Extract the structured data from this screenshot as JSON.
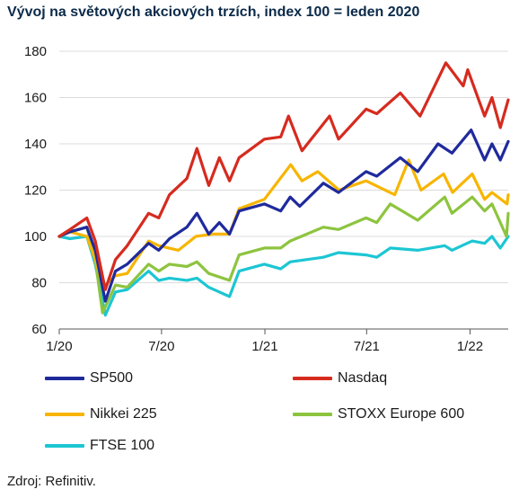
{
  "chart_data": {
    "type": "line",
    "title": "Vývoj na světových akciových trzích, index 100 = leden 2020",
    "xlabel": "",
    "ylabel": "",
    "ylim": [
      60,
      180
    ],
    "yticks": [
      60,
      80,
      100,
      120,
      140,
      160,
      180
    ],
    "xlim": [
      "2020-01-01",
      "2022-03-10"
    ],
    "xticks": [
      {
        "date": "2020-01-01",
        "label": "1/20"
      },
      {
        "date": "2020-07-01",
        "label": "7/20"
      },
      {
        "date": "2021-01-01",
        "label": "1/21"
      },
      {
        "date": "2021-07-01",
        "label": "7/21"
      },
      {
        "date": "2022-01-01",
        "label": "1/22"
      }
    ],
    "grid": "horizontal",
    "legend_position": "bottom",
    "series": [
      {
        "name": "SP500",
        "color": "#1f2a9c",
        "points": [
          [
            "2020-01-01",
            100
          ],
          [
            "2020-01-20",
            102
          ],
          [
            "2020-02-19",
            104
          ],
          [
            "2020-03-05",
            94
          ],
          [
            "2020-03-23",
            72
          ],
          [
            "2020-04-10",
            85
          ],
          [
            "2020-05-01",
            88
          ],
          [
            "2020-06-08",
            97
          ],
          [
            "2020-06-26",
            94
          ],
          [
            "2020-07-15",
            99
          ],
          [
            "2020-08-15",
            104
          ],
          [
            "2020-09-02",
            110
          ],
          [
            "2020-09-23",
            101
          ],
          [
            "2020-10-12",
            106
          ],
          [
            "2020-10-30",
            101
          ],
          [
            "2020-11-16",
            111
          ],
          [
            "2020-12-31",
            114
          ],
          [
            "2021-01-29",
            111
          ],
          [
            "2021-02-15",
            117
          ],
          [
            "2021-03-04",
            113
          ],
          [
            "2021-04-15",
            123
          ],
          [
            "2021-05-12",
            119
          ],
          [
            "2021-06-30",
            128
          ],
          [
            "2021-07-19",
            126
          ],
          [
            "2021-08-30",
            134
          ],
          [
            "2021-09-30",
            128
          ],
          [
            "2021-11-05",
            140
          ],
          [
            "2021-11-30",
            136
          ],
          [
            "2022-01-03",
            146
          ],
          [
            "2022-01-27",
            133
          ],
          [
            "2022-02-09",
            140
          ],
          [
            "2022-02-24",
            133
          ],
          [
            "2022-03-10",
            141
          ]
        ]
      },
      {
        "name": "Nasdaq",
        "color": "#d62b1f",
        "points": [
          [
            "2020-01-01",
            100
          ],
          [
            "2020-01-20",
            103
          ],
          [
            "2020-02-19",
            108
          ],
          [
            "2020-03-05",
            98
          ],
          [
            "2020-03-23",
            77
          ],
          [
            "2020-04-10",
            90
          ],
          [
            "2020-05-01",
            96
          ],
          [
            "2020-06-08",
            110
          ],
          [
            "2020-06-26",
            108
          ],
          [
            "2020-07-15",
            118
          ],
          [
            "2020-08-15",
            125
          ],
          [
            "2020-09-02",
            138
          ],
          [
            "2020-09-23",
            122
          ],
          [
            "2020-10-12",
            134
          ],
          [
            "2020-10-30",
            124
          ],
          [
            "2020-11-16",
            134
          ],
          [
            "2020-12-31",
            142
          ],
          [
            "2021-01-29",
            143
          ],
          [
            "2021-02-12",
            152
          ],
          [
            "2021-03-08",
            137
          ],
          [
            "2021-04-26",
            152
          ],
          [
            "2021-05-12",
            142
          ],
          [
            "2021-06-30",
            155
          ],
          [
            "2021-07-19",
            153
          ],
          [
            "2021-08-30",
            162
          ],
          [
            "2021-10-04",
            152
          ],
          [
            "2021-11-19",
            175
          ],
          [
            "2021-12-20",
            165
          ],
          [
            "2021-12-28",
            172
          ],
          [
            "2022-01-27",
            152
          ],
          [
            "2022-02-09",
            160
          ],
          [
            "2022-02-24",
            147
          ],
          [
            "2022-03-10",
            159
          ]
        ]
      },
      {
        "name": "Nikkei 225",
        "color": "#f7b500",
        "points": [
          [
            "2020-01-01",
            100
          ],
          [
            "2020-01-20",
            102
          ],
          [
            "2020-02-19",
            100
          ],
          [
            "2020-03-05",
            90
          ],
          [
            "2020-03-19",
            78
          ],
          [
            "2020-04-10",
            83
          ],
          [
            "2020-05-01",
            84
          ],
          [
            "2020-06-08",
            98
          ],
          [
            "2020-06-26",
            96
          ],
          [
            "2020-07-31",
            94
          ],
          [
            "2020-08-31",
            100
          ],
          [
            "2020-09-30",
            101
          ],
          [
            "2020-10-30",
            101
          ],
          [
            "2020-11-16",
            112
          ],
          [
            "2020-12-31",
            116
          ],
          [
            "2021-02-16",
            131
          ],
          [
            "2021-03-08",
            124
          ],
          [
            "2021-04-05",
            128
          ],
          [
            "2021-05-13",
            120
          ],
          [
            "2021-06-30",
            124
          ],
          [
            "2021-08-20",
            118
          ],
          [
            "2021-09-14",
            133
          ],
          [
            "2021-10-06",
            120
          ],
          [
            "2021-11-15",
            127
          ],
          [
            "2021-12-01",
            119
          ],
          [
            "2022-01-05",
            127
          ],
          [
            "2022-01-27",
            116
          ],
          [
            "2022-02-09",
            119
          ],
          [
            "2022-03-08",
            114
          ],
          [
            "2022-03-10",
            118
          ]
        ]
      },
      {
        "name": "STOXX Europe 600",
        "color": "#8dc43f",
        "points": [
          [
            "2020-01-01",
            100
          ],
          [
            "2020-01-20",
            102
          ],
          [
            "2020-02-19",
            104
          ],
          [
            "2020-03-05",
            90
          ],
          [
            "2020-03-18",
            67
          ],
          [
            "2020-04-10",
            79
          ],
          [
            "2020-05-01",
            78
          ],
          [
            "2020-06-08",
            88
          ],
          [
            "2020-06-26",
            85
          ],
          [
            "2020-07-15",
            88
          ],
          [
            "2020-08-15",
            87
          ],
          [
            "2020-09-02",
            89
          ],
          [
            "2020-09-23",
            84
          ],
          [
            "2020-10-30",
            81
          ],
          [
            "2020-11-16",
            92
          ],
          [
            "2020-12-31",
            95
          ],
          [
            "2021-01-29",
            95
          ],
          [
            "2021-02-15",
            98
          ],
          [
            "2021-04-15",
            104
          ],
          [
            "2021-05-12",
            103
          ],
          [
            "2021-06-30",
            108
          ],
          [
            "2021-07-19",
            106
          ],
          [
            "2021-08-12",
            114
          ],
          [
            "2021-09-30",
            107
          ],
          [
            "2021-11-17",
            117
          ],
          [
            "2021-11-30",
            110
          ],
          [
            "2022-01-05",
            117
          ],
          [
            "2022-01-27",
            111
          ],
          [
            "2022-02-09",
            114
          ],
          [
            "2022-03-07",
            100
          ],
          [
            "2022-03-10",
            110
          ]
        ]
      },
      {
        "name": "FTSE 100",
        "color": "#1cc6d3",
        "points": [
          [
            "2020-01-01",
            100
          ],
          [
            "2020-01-20",
            99
          ],
          [
            "2020-02-19",
            100
          ],
          [
            "2020-03-05",
            88
          ],
          [
            "2020-03-23",
            66
          ],
          [
            "2020-04-10",
            76
          ],
          [
            "2020-05-01",
            77
          ],
          [
            "2020-06-08",
            85
          ],
          [
            "2020-06-26",
            81
          ],
          [
            "2020-07-15",
            82
          ],
          [
            "2020-08-15",
            81
          ],
          [
            "2020-09-02",
            82
          ],
          [
            "2020-09-23",
            78
          ],
          [
            "2020-10-30",
            74
          ],
          [
            "2020-11-16",
            85
          ],
          [
            "2020-12-31",
            88
          ],
          [
            "2021-01-29",
            86
          ],
          [
            "2021-02-15",
            89
          ],
          [
            "2021-04-15",
            91
          ],
          [
            "2021-05-12",
            93
          ],
          [
            "2021-06-30",
            92
          ],
          [
            "2021-07-19",
            91
          ],
          [
            "2021-08-12",
            95
          ],
          [
            "2021-09-30",
            94
          ],
          [
            "2021-11-17",
            96
          ],
          [
            "2021-11-30",
            94
          ],
          [
            "2022-01-05",
            98
          ],
          [
            "2022-01-27",
            97
          ],
          [
            "2022-02-09",
            100
          ],
          [
            "2022-02-24",
            95
          ],
          [
            "2022-03-10",
            100
          ]
        ]
      }
    ]
  },
  "legend": [
    {
      "label": "SP500",
      "color": "#1f2a9c"
    },
    {
      "label": "Nasdaq",
      "color": "#d62b1f"
    },
    {
      "label": "Nikkei 225",
      "color": "#f7b500"
    },
    {
      "label": "STOXX Europe 600",
      "color": "#8dc43f"
    },
    {
      "label": "FTSE 100",
      "color": "#1cc6d3"
    }
  ],
  "source": "Zdroj: Refinitiv."
}
